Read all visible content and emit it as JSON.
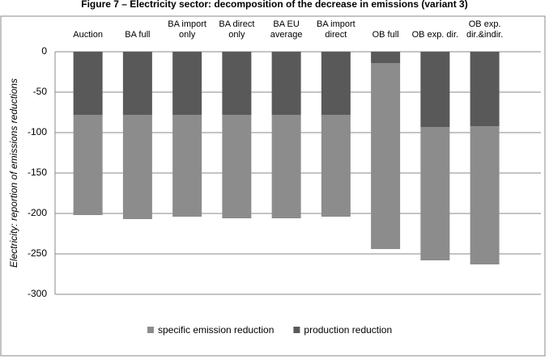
{
  "chart_data": {
    "type": "stacked_bar",
    "title": "Figure 7 – Electricity sector: decomposition of the decrease in emissions (variant 3)",
    "y_label": "Electricity: reportion of emissions reductions",
    "categories": [
      "Auction",
      "BA full",
      "BA import only",
      "BA direct only",
      "BA EU average",
      "BA import direct",
      "OB full",
      "OB exp. dir.",
      "OB exp. dir.&indir."
    ],
    "series": [
      {
        "name": "specific emission reduction",
        "color": "#8c8c8c",
        "values": [
          -124,
          -129,
          -126,
          -128,
          -128,
          -126,
          -230,
          -165,
          -171
        ]
      },
      {
        "name": "production reduction",
        "color": "#595959",
        "values": [
          -78,
          -78,
          -78,
          -78,
          -78,
          -78,
          -14,
          -93,
          -92
        ]
      }
    ],
    "ylim": [
      -300,
      0
    ],
    "yticks": [
      0,
      -50,
      -100,
      -150,
      -200,
      -250,
      -300
    ],
    "grid": true,
    "legend": "bottom"
  }
}
